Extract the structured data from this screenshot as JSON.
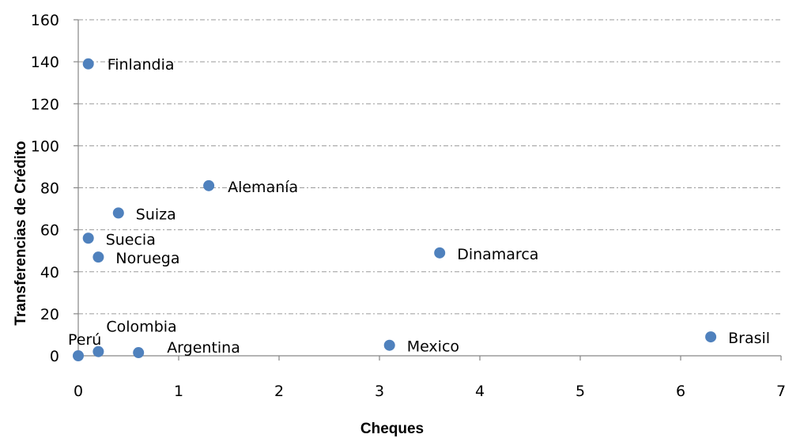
{
  "chart_data": {
    "type": "scatter",
    "xlabel": "Cheques",
    "ylabel": "Transferencias de Crédito",
    "xlim": [
      0,
      7
    ],
    "ylim": [
      0,
      160
    ],
    "x_ticks": [
      0,
      1,
      2,
      3,
      4,
      5,
      6,
      7
    ],
    "y_ticks": [
      0,
      20,
      40,
      60,
      80,
      100,
      120,
      140,
      160
    ],
    "grid": "horizontal",
    "marker_color": "#4f81bd",
    "series": [
      {
        "points": [
          {
            "label": "Finlandia",
            "x": 0.1,
            "y": 139
          },
          {
            "label": "Alemanía",
            "x": 1.3,
            "y": 81
          },
          {
            "label": "Suiza",
            "x": 0.4,
            "y": 68
          },
          {
            "label": "Suecia",
            "x": 0.1,
            "y": 56
          },
          {
            "label": "Noruega",
            "x": 0.2,
            "y": 47
          },
          {
            "label": "Dinamarca",
            "x": 3.6,
            "y": 49
          },
          {
            "label": "Colombia",
            "x": 0.2,
            "y": 2
          },
          {
            "label": "Perú",
            "x": 0.0,
            "y": 0,
            "label_color": "#c00000"
          },
          {
            "label": "Argentina",
            "x": 0.6,
            "y": 1.5
          },
          {
            "label": "Mexico",
            "x": 3.1,
            "y": 5
          },
          {
            "label": "Brasil",
            "x": 6.3,
            "y": 9
          }
        ]
      }
    ]
  }
}
